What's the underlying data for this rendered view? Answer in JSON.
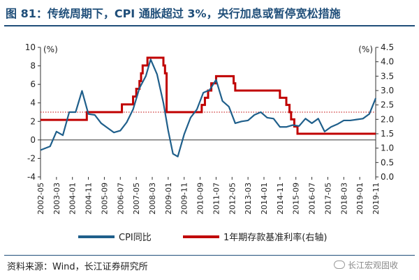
{
  "title": "图 81：传统周期下，CPI 通胀超过 3%，央行加息或暂停宽松措施",
  "source": "资料来源：Wind，长江证券研究所",
  "watermark": "长江宏观固收",
  "colors": {
    "cpi": "#1f5f8b",
    "rate": "#c00000",
    "threshold": "#c00000",
    "title": "#1f4e79"
  },
  "chart_data": {
    "type": "line",
    "left_unit": "(%)",
    "right_unit": "(%)",
    "left_ylim": [
      -4,
      10
    ],
    "right_ylim": [
      0,
      4.5
    ],
    "left_ticks": [
      "-4",
      "-2",
      "0",
      "2",
      "4",
      "6",
      "8",
      "10"
    ],
    "right_ticks": [
      "0.0",
      "0.5",
      "1.0",
      "1.5",
      "2.0",
      "2.5",
      "3.0",
      "3.5",
      "4.0",
      "4.5"
    ],
    "x_ticks": [
      "2002-05",
      "2003-03",
      "2004-01",
      "2004-11",
      "2005-09",
      "2006-07",
      "2007-05",
      "2008-03",
      "2009-01",
      "2009-11",
      "2010-09",
      "2011-07",
      "2012-05",
      "2013-03",
      "2014-01",
      "2014-11",
      "2015-09",
      "2016-07",
      "2017-05",
      "2018-03",
      "2019-01",
      "2019-11"
    ],
    "threshold": {
      "value": 3,
      "axis": "left",
      "style": "dotted"
    },
    "series": [
      {
        "name": "CPI同比",
        "axis": "left",
        "x": [
          "2002-05",
          "2002-11",
          "2003-03",
          "2003-07",
          "2003-11",
          "2004-03",
          "2004-07",
          "2004-11",
          "2005-03",
          "2005-07",
          "2005-11",
          "2006-03",
          "2006-07",
          "2006-11",
          "2007-03",
          "2007-07",
          "2007-11",
          "2008-02",
          "2008-06",
          "2008-10",
          "2009-01",
          "2009-04",
          "2009-07",
          "2009-11",
          "2010-03",
          "2010-07",
          "2010-11",
          "2011-03",
          "2011-07",
          "2011-11",
          "2012-03",
          "2012-07",
          "2012-11",
          "2013-03",
          "2013-07",
          "2013-11",
          "2014-03",
          "2014-07",
          "2014-11",
          "2015-03",
          "2015-07",
          "2015-11",
          "2016-03",
          "2016-07",
          "2016-11",
          "2017-03",
          "2017-07",
          "2017-11",
          "2018-03",
          "2018-07",
          "2018-11",
          "2019-03",
          "2019-07",
          "2019-11"
        ],
        "values": [
          -1.1,
          -0.7,
          0.9,
          0.5,
          3.0,
          3.0,
          5.3,
          2.8,
          2.7,
          1.8,
          1.3,
          0.8,
          1.0,
          1.9,
          3.3,
          5.6,
          6.9,
          8.7,
          7.1,
          4.0,
          1.0,
          -1.5,
          -1.8,
          0.6,
          2.4,
          3.3,
          5.1,
          5.4,
          6.5,
          4.2,
          3.6,
          1.8,
          2.0,
          2.1,
          2.7,
          3.0,
          2.4,
          2.3,
          1.4,
          1.4,
          1.6,
          1.5,
          2.3,
          1.8,
          2.3,
          0.9,
          1.4,
          1.7,
          2.1,
          2.1,
          2.2,
          2.3,
          2.8,
          4.5
        ]
      },
      {
        "name": "1年期存款基准利率(右轴)",
        "axis": "right",
        "step": true,
        "x": [
          "2002-05",
          "2004-10",
          "2006-08",
          "2007-03",
          "2007-05",
          "2007-07",
          "2007-08",
          "2007-09",
          "2007-12",
          "2008-10",
          "2008-11",
          "2008-12",
          "2010-10",
          "2010-12",
          "2011-02",
          "2011-04",
          "2011-07",
          "2012-06",
          "2012-07",
          "2014-11",
          "2015-03",
          "2015-05",
          "2015-06",
          "2015-08",
          "2015-10",
          "2019-11"
        ],
        "values": [
          1.98,
          2.25,
          2.52,
          2.79,
          3.06,
          3.33,
          3.6,
          3.87,
          4.14,
          3.87,
          3.6,
          2.25,
          2.5,
          2.75,
          3.0,
          3.25,
          3.5,
          3.25,
          3.0,
          2.75,
          2.5,
          2.25,
          2.0,
          1.75,
          1.5,
          1.5
        ]
      }
    ]
  }
}
